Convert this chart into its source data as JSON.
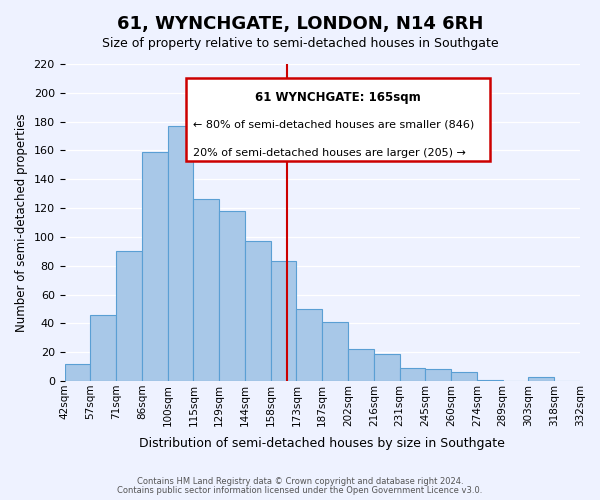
{
  "title": "61, WYNCHGATE, LONDON, N14 6RH",
  "subtitle": "Size of property relative to semi-detached houses in Southgate",
  "xlabel": "Distribution of semi-detached houses by size in Southgate",
  "ylabel": "Number of semi-detached properties",
  "footer_lines": [
    "Contains HM Land Registry data © Crown copyright and database right 2024.",
    "Contains public sector information licensed under the Open Government Licence v3.0."
  ],
  "bin_labels": [
    "42sqm",
    "57sqm",
    "71sqm",
    "86sqm",
    "100sqm",
    "115sqm",
    "129sqm",
    "144sqm",
    "158sqm",
    "173sqm",
    "187sqm",
    "202sqm",
    "216sqm",
    "231sqm",
    "245sqm",
    "260sqm",
    "274sqm",
    "289sqm",
    "303sqm",
    "318sqm",
    "332sqm"
  ],
  "bar_values": [
    12,
    46,
    90,
    159,
    177,
    126,
    118,
    97,
    83,
    50,
    41,
    22,
    19,
    9,
    8,
    6,
    1,
    0,
    3,
    0
  ],
  "bar_color": "#a8c8e8",
  "bar_edgecolor": "#5a9fd4",
  "property_line_x": 8.65,
  "property_line_color": "#cc0000",
  "annotation_title": "61 WYNCHGATE: 165sqm",
  "annotation_line1": "← 80% of semi-detached houses are smaller (846)",
  "annotation_line2": "20% of semi-detached houses are larger (205) →",
  "annotation_box_color": "#cc0000",
  "ylim": [
    0,
    220
  ],
  "yticks": [
    0,
    20,
    40,
    60,
    80,
    100,
    120,
    140,
    160,
    180,
    200,
    220
  ],
  "background_color": "#eef2ff",
  "grid_color": "#ffffff"
}
